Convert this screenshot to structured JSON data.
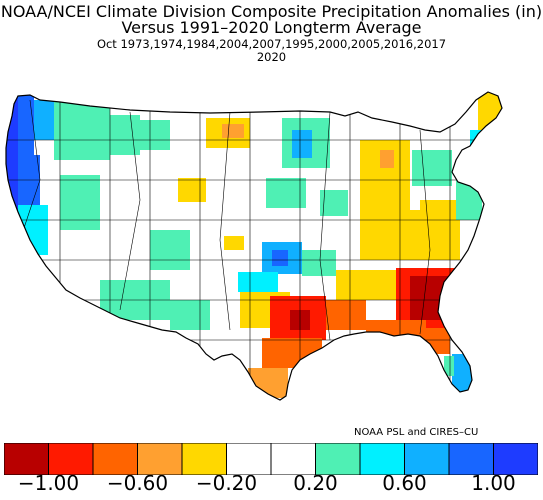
{
  "titles": {
    "line1": "NOAA/NCEI Climate Division Composite Precipitation Anomalies (in)",
    "line2": "Versus 1991–2020 Longterm Average",
    "line3": "Oct   1973,1974,1984,2004,2007,1995,2000,2005,2016,2017",
    "line4": "2020"
  },
  "credit": "NOAA PSL and CIRES–CU",
  "colors": {
    "background": "#ffffff",
    "outline": "#000000",
    "ocean": "#ffffff"
  },
  "colorbar": {
    "bins": [
      {
        "min": -1.2,
        "max": -1.0,
        "color": "#b80000"
      },
      {
        "min": -1.0,
        "max": -0.8,
        "color": "#ff1a00"
      },
      {
        "min": -0.8,
        "max": -0.6,
        "color": "#ff6400"
      },
      {
        "min": -0.6,
        "max": -0.4,
        "color": "#ffa030"
      },
      {
        "min": -0.4,
        "max": -0.2,
        "color": "#ffd800"
      },
      {
        "min": -0.2,
        "max": 0.0,
        "color": "#ffffff"
      },
      {
        "min": 0.0,
        "max": 0.2,
        "color": "#ffffff"
      },
      {
        "min": 0.2,
        "max": 0.4,
        "color": "#4ff0b4"
      },
      {
        "min": 0.4,
        "max": 0.6,
        "color": "#00f0ff"
      },
      {
        "min": 0.6,
        "max": 0.8,
        "color": "#10b0ff"
      },
      {
        "min": 0.8,
        "max": 1.0,
        "color": "#1866ff"
      },
      {
        "min": 1.0,
        "max": 1.2,
        "color": "#1e3cff"
      }
    ],
    "tick_labels": [
      "−1.00",
      "−0.60",
      "−0.20",
      "0.20",
      "0.60",
      "1.00"
    ],
    "tick_values": [
      -1.0,
      -0.6,
      -0.2,
      0.2,
      0.6,
      1.0
    ]
  },
  "regions": [
    {
      "name": "pacific-northwest-coast",
      "color": "#1e3cff"
    },
    {
      "name": "oregon-coast",
      "color": "#1866ff"
    },
    {
      "name": "washington-cascades",
      "color": "#10b0ff"
    },
    {
      "name": "california-north-coast",
      "color": "#1866ff"
    },
    {
      "name": "california-central",
      "color": "#00f0ff"
    },
    {
      "name": "great-basin",
      "color": "#4ff0b4"
    },
    {
      "name": "desert-southwest",
      "color": "#4ff0b4"
    },
    {
      "name": "wyoming-montana",
      "color": "#ffd800"
    },
    {
      "name": "minnesota-wisconsin",
      "color": "#10b0ff"
    },
    {
      "name": "upper-midwest",
      "color": "#4ff0b4"
    },
    {
      "name": "central-plains",
      "color": "#1866ff"
    },
    {
      "name": "oklahoma",
      "color": "#10b0ff"
    },
    {
      "name": "texas-west",
      "color": "#ffd800"
    },
    {
      "name": "texas-east-louisiana",
      "color": "#ff1a00"
    },
    {
      "name": "gulf-coast-texas",
      "color": "#ff6400"
    },
    {
      "name": "mississippi-alabama",
      "color": "#ffd800"
    },
    {
      "name": "georgia-carolinas",
      "color": "#b80000"
    },
    {
      "name": "south-carolina",
      "color": "#ff1a00"
    },
    {
      "name": "north-florida",
      "color": "#ff6400"
    },
    {
      "name": "south-florida",
      "color": "#10b0ff"
    },
    {
      "name": "ohio-valley",
      "color": "#ffd800"
    },
    {
      "name": "michigan",
      "color": "#ffd800"
    },
    {
      "name": "appalachians",
      "color": "#ffd800"
    },
    {
      "name": "mid-atlantic",
      "color": "#4ff0b4"
    },
    {
      "name": "new-england",
      "color": "#00f0ff"
    },
    {
      "name": "maine",
      "color": "#ffd800"
    }
  ]
}
